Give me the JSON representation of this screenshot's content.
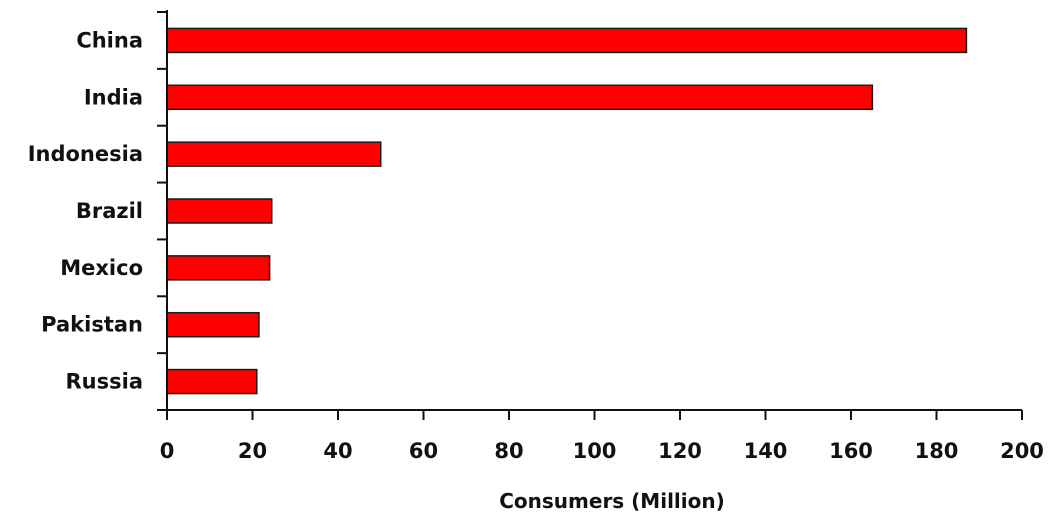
{
  "chart_data": {
    "type": "bar",
    "orientation": "horizontal",
    "categories": [
      "China",
      "India",
      "Indonesia",
      "Brazil",
      "Mexico",
      "Pakistan",
      "Russia"
    ],
    "values": [
      187,
      165,
      50,
      24.5,
      24,
      21.5,
      21
    ],
    "xlabel": "Consumers (Million)",
    "xlim": [
      0,
      200
    ],
    "xticks": [
      "0",
      "20",
      "40",
      "60",
      "80",
      "100",
      "120",
      "140",
      "160",
      "180",
      "200"
    ],
    "grid": false,
    "bar_color": "#ff0000",
    "bar_stroke": "#1a1a1a"
  }
}
